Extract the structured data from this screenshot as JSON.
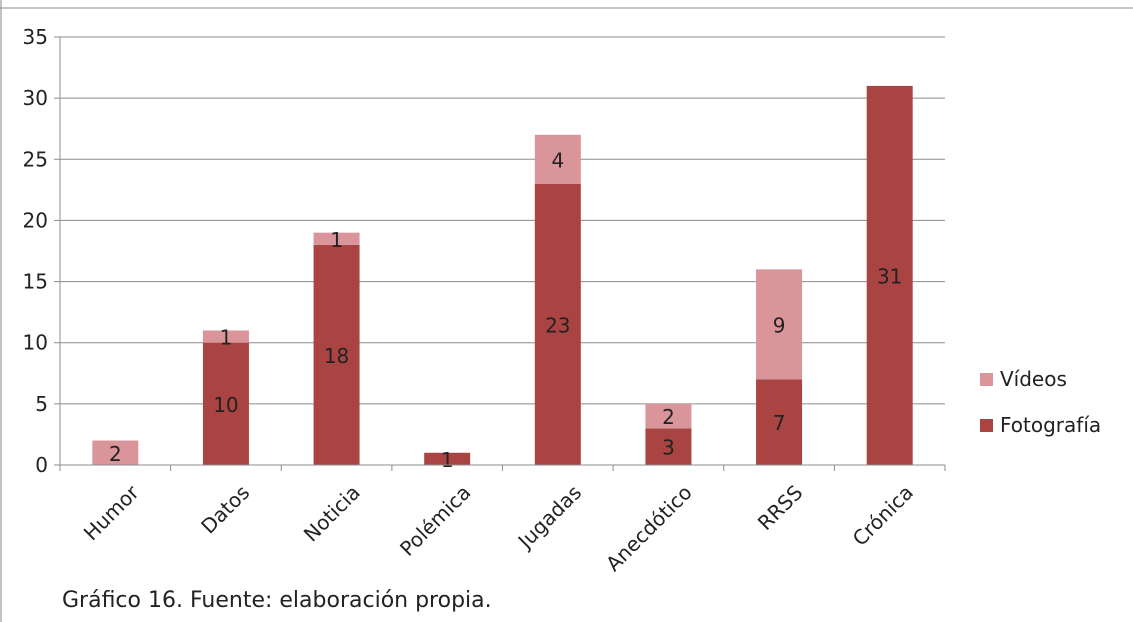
{
  "chart_data": {
    "type": "bar",
    "stacked": true,
    "categories": [
      "Humor",
      "Datos",
      "Noticia",
      "Polémica",
      "Jugadas",
      "Anecdótico",
      "RRSS",
      "Crónica"
    ],
    "series": [
      {
        "name": "Fotografía",
        "color": "#A94442",
        "values": [
          0,
          10,
          18,
          1,
          23,
          3,
          7,
          31
        ]
      },
      {
        "name": "Vídeos",
        "color": "#D9959A",
        "values": [
          2,
          1,
          1,
          0,
          4,
          2,
          9,
          0
        ]
      }
    ],
    "ylim": [
      0,
      35
    ],
    "yticks": [
      0,
      5,
      10,
      15,
      20,
      25,
      30,
      35
    ],
    "grid": true,
    "legend": "right",
    "data_labels": true
  },
  "caption": "Gráfico 16. Fuente: elaboración propia."
}
